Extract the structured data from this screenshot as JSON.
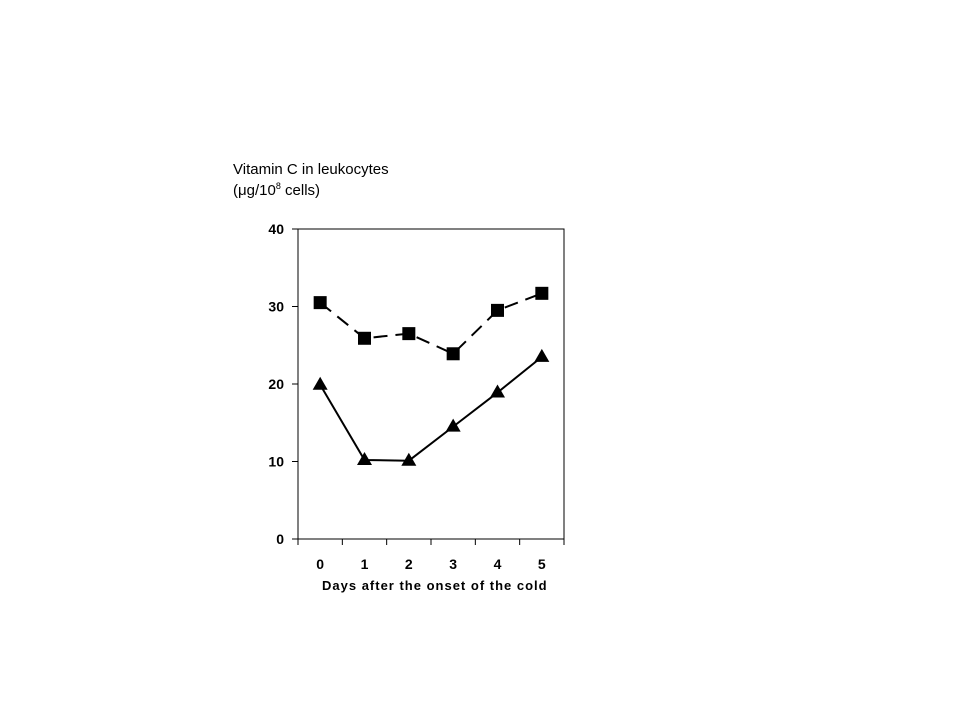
{
  "chart_data": {
    "type": "line",
    "ylabel_line1": "Vitamin C in leukocytes",
    "ylabel_line2_pre": "(μg/10",
    "ylabel_line2_sup": "8",
    "ylabel_line2_post": " cells)",
    "xlabel": "Days after the onset of the cold",
    "x": [
      0,
      1,
      2,
      3,
      4,
      5
    ],
    "xticks": [
      "0",
      "1",
      "2",
      "3",
      "4",
      "5"
    ],
    "yticks": [
      "0",
      "10",
      "20",
      "30",
      "40"
    ],
    "ylim": [
      0,
      40
    ],
    "xlim": [
      -0.5,
      5.5
    ],
    "grid": false,
    "series": [
      {
        "marker": "square",
        "line_style": "dashed",
        "color": "#000000",
        "values": [
          30.5,
          25.9,
          26.5,
          23.9,
          29.5,
          31.7
        ]
      },
      {
        "marker": "triangle",
        "line_style": "solid",
        "color": "#000000",
        "values": [
          19.9,
          10.2,
          10.1,
          14.5,
          18.9,
          23.5
        ]
      }
    ]
  }
}
